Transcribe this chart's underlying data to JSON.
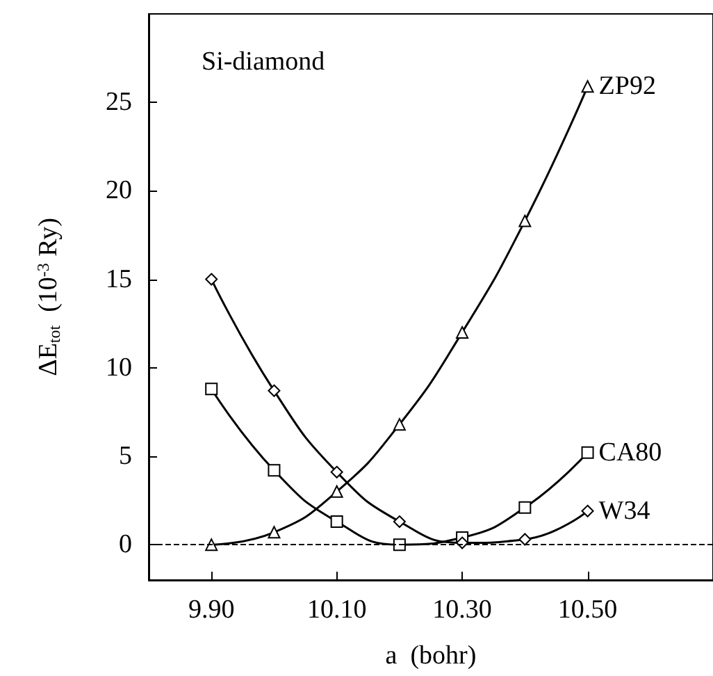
{
  "chart_data": {
    "type": "line",
    "xlabel": "a  (bohr)",
    "ylabel": "ΔE$_{tot}$  (10$^{-3}$ Ry)",
    "x": [
      9.9,
      10.0,
      10.1,
      10.2,
      10.3,
      10.4,
      10.5
    ],
    "series": [
      {
        "name": "ZP92",
        "color": "#000000",
        "marker": "triangle",
        "values": [
          0,
          0.7,
          3.0,
          6.8,
          12.0,
          18.3,
          25.9
        ]
      },
      {
        "name": "CA80",
        "color": "#000000",
        "marker": "square",
        "values": [
          8.8,
          4.2,
          1.3,
          0.0,
          0.4,
          2.1,
          5.2
        ]
      },
      {
        "name": "W34",
        "color": "#000000",
        "marker": "diamond",
        "values": [
          15.0,
          8.7,
          4.1,
          1.3,
          0.1,
          0.3,
          1.9
        ]
      }
    ],
    "xlim": [
      9.8,
      10.7
    ],
    "xticks": [
      {
        "value": 9.9,
        "label": "9.90"
      },
      {
        "value": 10.1,
        "label": "10.10"
      },
      {
        "value": 10.3,
        "label": "10.30"
      },
      {
        "value": 10.5,
        "label": "10.50"
      }
    ],
    "ylim": [
      -2,
      30
    ],
    "yticks": [
      0,
      5,
      10,
      15,
      20,
      25
    ],
    "ref_lines": [
      {
        "axis": "y",
        "value": 0,
        "line_style": "dashed",
        "color": "#000000"
      }
    ],
    "annotations": [
      "Si-diamond"
    ],
    "grid": false,
    "legend": false,
    "line_style": "solid"
  }
}
